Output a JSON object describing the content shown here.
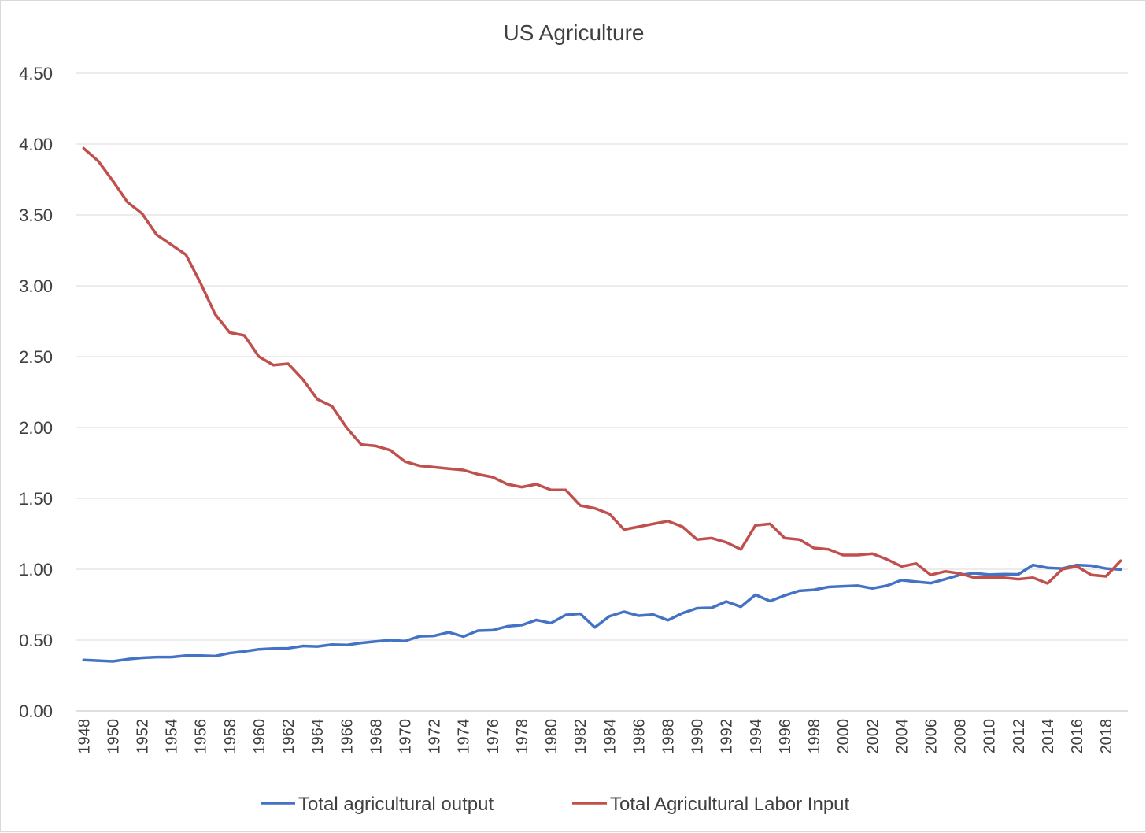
{
  "chart_data": {
    "type": "line",
    "title": "US Agriculture",
    "xlabel": "",
    "ylabel": "",
    "ylim": [
      0,
      4.5
    ],
    "yticks": [
      "0.00",
      "0.50",
      "1.00",
      "1.50",
      "2.00",
      "2.50",
      "3.00",
      "3.50",
      "4.00",
      "4.50"
    ],
    "x_tick_labels": [
      "1948",
      "1950",
      "1952",
      "1954",
      "1956",
      "1958",
      "1960",
      "1962",
      "1964",
      "1966",
      "1968",
      "1970",
      "1972",
      "1974",
      "1976",
      "1978",
      "1980",
      "1982",
      "1984",
      "1986",
      "1988",
      "1990",
      "1992",
      "1994",
      "1996",
      "1998",
      "2000",
      "2002",
      "2004",
      "2006",
      "2008",
      "2010",
      "2012",
      "2014",
      "2016",
      "2018"
    ],
    "grid": true,
    "legend_position": "bottom",
    "x": [
      1948,
      1949,
      1950,
      1951,
      1952,
      1953,
      1954,
      1955,
      1956,
      1957,
      1958,
      1959,
      1960,
      1961,
      1962,
      1963,
      1964,
      1965,
      1966,
      1967,
      1968,
      1969,
      1970,
      1971,
      1972,
      1973,
      1974,
      1975,
      1976,
      1977,
      1978,
      1979,
      1980,
      1981,
      1982,
      1983,
      1984,
      1985,
      1986,
      1987,
      1988,
      1989,
      1990,
      1991,
      1992,
      1993,
      1994,
      1995,
      1996,
      1997,
      1998,
      1999,
      2000,
      2001,
      2002,
      2003,
      2004,
      2005,
      2006,
      2007,
      2008,
      2009,
      2010,
      2011,
      2012,
      2013,
      2014,
      2015,
      2016,
      2017,
      2018,
      2019
    ],
    "series": [
      {
        "name": "Total agricultural output",
        "color": "#4472c4",
        "values": [
          0.36,
          0.355,
          0.35,
          0.365,
          0.375,
          0.38,
          0.38,
          0.39,
          0.39,
          0.387,
          0.408,
          0.42,
          0.435,
          0.44,
          0.442,
          0.458,
          0.455,
          0.468,
          0.465,
          0.48,
          0.49,
          0.5,
          0.493,
          0.527,
          0.53,
          0.555,
          0.525,
          0.567,
          0.57,
          0.597,
          0.606,
          0.642,
          0.62,
          0.677,
          0.686,
          0.59,
          0.668,
          0.7,
          0.672,
          0.68,
          0.64,
          0.69,
          0.725,
          0.728,
          0.772,
          0.735,
          0.82,
          0.775,
          0.815,
          0.848,
          0.855,
          0.875,
          0.88,
          0.884,
          0.865,
          0.884,
          0.923,
          0.912,
          0.902,
          0.93,
          0.96,
          0.972,
          0.962,
          0.965,
          0.964,
          1.03,
          1.01,
          1.005,
          1.03,
          1.025,
          1.005,
          0.998
        ]
      },
      {
        "name": "Total Agricultural Labor Input",
        "color": "#c0504d",
        "values": [
          3.97,
          3.88,
          3.74,
          3.59,
          3.51,
          3.36,
          3.29,
          3.22,
          3.02,
          2.8,
          2.67,
          2.65,
          2.5,
          2.44,
          2.45,
          2.34,
          2.2,
          2.15,
          2.0,
          1.88,
          1.87,
          1.84,
          1.76,
          1.73,
          1.72,
          1.71,
          1.7,
          1.67,
          1.65,
          1.6,
          1.58,
          1.6,
          1.56,
          1.56,
          1.45,
          1.43,
          1.39,
          1.28,
          1.3,
          1.32,
          1.34,
          1.3,
          1.21,
          1.22,
          1.19,
          1.14,
          1.31,
          1.32,
          1.22,
          1.21,
          1.15,
          1.14,
          1.1,
          1.1,
          1.11,
          1.07,
          1.02,
          1.04,
          0.96,
          0.985,
          0.97,
          0.94,
          0.94,
          0.94,
          0.93,
          0.94,
          0.9,
          1.0,
          1.02,
          0.96,
          0.95,
          1.06
        ]
      }
    ]
  }
}
